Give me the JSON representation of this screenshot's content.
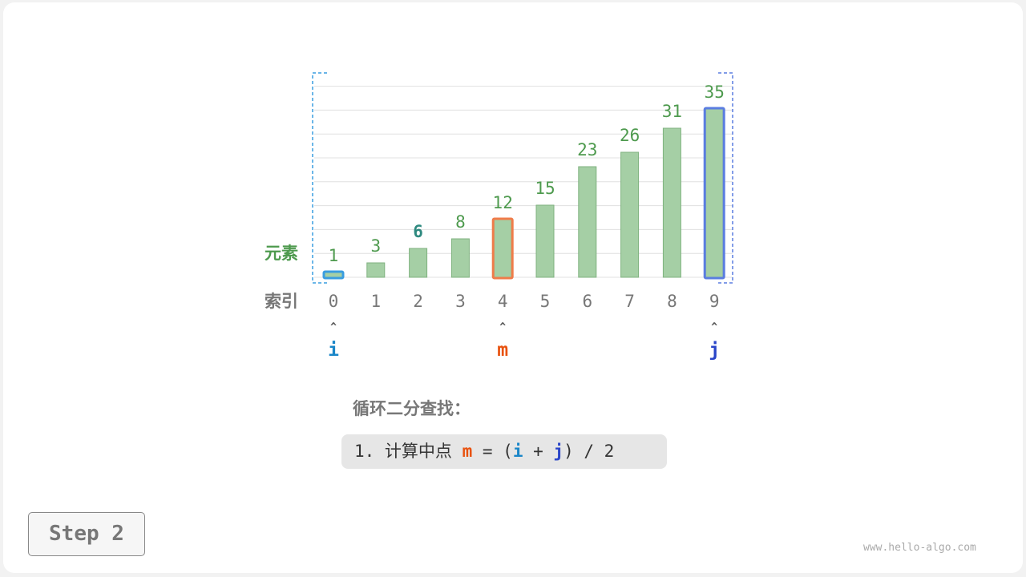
{
  "diagram": {
    "row_labels": {
      "elements": "元素",
      "indices": "索引"
    },
    "values": [
      1,
      3,
      6,
      8,
      12,
      15,
      23,
      26,
      31,
      35
    ],
    "indices": [
      "0",
      "1",
      "2",
      "3",
      "4",
      "5",
      "6",
      "7",
      "8",
      "9"
    ],
    "pointers": [
      {
        "name": "i",
        "index": 0,
        "color": "#1a86c8"
      },
      {
        "name": "m",
        "index": 4,
        "color": "#e8520f"
      },
      {
        "name": "j",
        "index": 9,
        "color": "#2a45c8"
      }
    ],
    "target_index": 2,
    "colors": {
      "bar_fill": "#a5cfa5",
      "bar_stroke": "#7fb27f",
      "value_text": "#4e9a4e",
      "target_text": "#2f8a80",
      "index_text": "#777777",
      "i_box": "#3a9de0",
      "m_box": "#f07c4a",
      "j_box": "#5a7de0"
    }
  },
  "title": "循环二分查找：",
  "step_line": {
    "prefix": "1. 计算中点 ",
    "m": "m",
    "mid1": " = (",
    "i": "i",
    "mid2": " + ",
    "j": "j",
    "suffix": ") / 2"
  },
  "step_button": "Step 2",
  "watermark": "www.hello-algo.com"
}
